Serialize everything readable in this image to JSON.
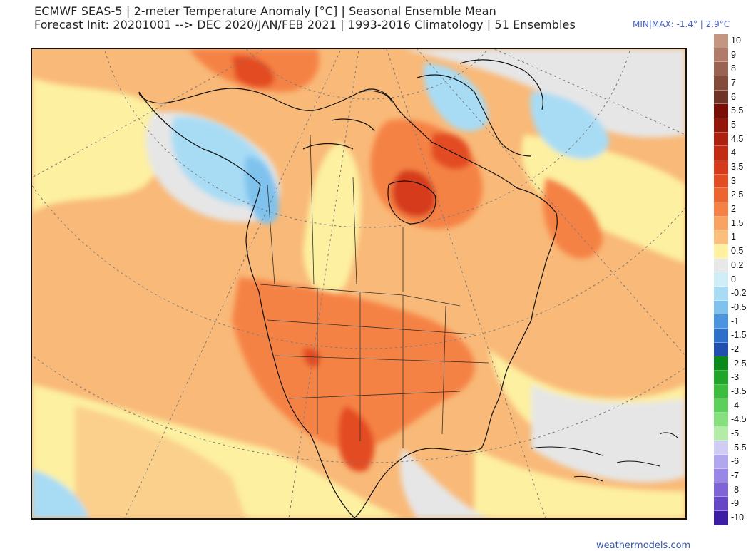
{
  "header": {
    "title_line1": "ECMWF SEAS-5 | 2-meter Temperature Anomaly [°C] | Seasonal Ensemble Mean",
    "title_line2": "Forecast Init: 20201001 --> DEC 2020/JAN/FEB 2021  | 1993-2016 Climatology | 51 Ensembles",
    "minmax": "MIN|MAX: -1.4° | 2.9°C"
  },
  "colorbar": {
    "labels": [
      "10",
      "9",
      "8",
      "7",
      "6",
      "5.5",
      "5",
      "4.5",
      "4",
      "3.5",
      "3",
      "2.5",
      "2",
      "1.5",
      "1",
      "0.5",
      "0.2",
      "0",
      "-0.2",
      "-0.5",
      "-1",
      "-1.5",
      "-2",
      "-2.5",
      "-3",
      "-3.5",
      "-4",
      "-4.5",
      "-5",
      "-5.5",
      "-6",
      "-7",
      "-8",
      "-9",
      "-10"
    ],
    "colors": [
      "#c49580",
      "#b07b68",
      "#9a6250",
      "#844a3a",
      "#6e3326",
      "#7a0d06",
      "#94160a",
      "#ad1f0e",
      "#c42a12",
      "#d63a1a",
      "#e34c22",
      "#ee642e",
      "#f58244",
      "#f9a362",
      "#fbbf7c",
      "#fdf0a0",
      "#e8e8e8",
      "#cfeef8",
      "#a8dcf5",
      "#7fc2ee",
      "#4b94e0",
      "#2f6fcc",
      "#1f4fb0",
      "#0a8a1a",
      "#1fa62a",
      "#3cbd3e",
      "#5dd05c",
      "#86e07e",
      "#b2eca6",
      "#cfcdf3",
      "#b1a7ee",
      "#9a86e6",
      "#7f64d8",
      "#6547c8",
      "#3b1da6"
    ]
  },
  "footer": {
    "watermark": "weathermodels.com"
  }
}
